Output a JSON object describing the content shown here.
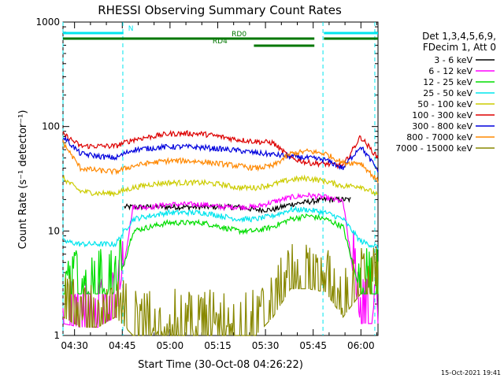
{
  "chart_data": {
    "type": "line",
    "title": "RHESSI Observing Summary Count Rates",
    "xlabel": "Start Time (30-Oct-08 04:26:22)",
    "ylabel": "Count Rate (s⁻¹ detector⁻¹)",
    "y_scale": "log",
    "xlim_minutes": [
      0,
      99
    ],
    "ylim": [
      1,
      1000
    ],
    "x_ticks": [
      {
        "t": 3.63,
        "label": "04:30"
      },
      {
        "t": 18.63,
        "label": "04:45"
      },
      {
        "t": 33.63,
        "label": "05:00"
      },
      {
        "t": 48.63,
        "label": "05:15"
      },
      {
        "t": 63.63,
        "label": "05:30"
      },
      {
        "t": 78.63,
        "label": "05:45"
      },
      {
        "t": 93.63,
        "label": "06:00"
      }
    ],
    "y_ticks": [
      {
        "v": 1,
        "label": "1"
      },
      {
        "v": 10,
        "label": "10"
      },
      {
        "v": 100,
        "label": "100"
      },
      {
        "v": 1000,
        "label": "1000"
      }
    ],
    "header": {
      "det": "Det 1,3,4,5,6,9,",
      "fdecim": "FDecim 1, Att 0"
    },
    "timestamp": "15-Oct-2021 19:41",
    "flags": [
      {
        "name": "N",
        "color": "#00e5ee",
        "segments": [
          [
            0,
            19
          ],
          [
            82,
            99
          ]
        ],
        "label": "N"
      },
      {
        "name": "RD0",
        "color": "#007700",
        "segments": [
          [
            0,
            79
          ],
          [
            82,
            99
          ]
        ],
        "label": "RD0"
      },
      {
        "name": "RD4",
        "color": "#007700",
        "segments": [
          [
            60,
            79
          ]
        ],
        "label": "RD4"
      }
    ],
    "boundaries_minutes": [
      0,
      18.8,
      81.7,
      98
    ],
    "series": [
      {
        "name": "3 - 6 keV",
        "color": "#000000",
        "values": [
          0,
          0,
          0,
          0,
          17,
          17,
          17,
          17,
          17,
          17,
          17,
          16,
          16,
          18,
          19,
          20,
          20,
          0,
          0
        ]
      },
      {
        "name": "6 - 12 keV",
        "color": "#ff00ff",
        "values": [
          1.3,
          1.2,
          1.2,
          1.5,
          17,
          17,
          18,
          18,
          18,
          17,
          17,
          17,
          19,
          21,
          22,
          21,
          19,
          1.3,
          1.3
        ]
      },
      {
        "name": "12 - 25 keV",
        "color": "#00dd00",
        "values": [
          2.5,
          2.5,
          2.5,
          2.5,
          10,
          11,
          12,
          12,
          12,
          11,
          10,
          10,
          11,
          13,
          14,
          13,
          11,
          2.5,
          2.5
        ]
      },
      {
        "name": "25 - 50 keV",
        "color": "#00e5ee",
        "values": [
          8,
          7.5,
          7.5,
          7.5,
          13,
          14,
          15,
          15,
          15,
          14,
          13,
          13,
          14,
          16,
          16,
          15,
          13,
          8,
          7
        ]
      },
      {
        "name": "50 - 100 keV",
        "color": "#cccc00",
        "values": [
          32,
          24,
          23,
          23,
          26,
          28,
          29,
          29,
          29,
          28,
          26,
          26,
          28,
          31,
          32,
          30,
          27,
          27,
          22
        ]
      },
      {
        "name": "100 - 300 keV",
        "color": "#dd0000",
        "values": [
          85,
          65,
          65,
          65,
          75,
          80,
          85,
          86,
          85,
          80,
          75,
          72,
          70,
          50,
          45,
          44,
          42,
          80,
          50
        ]
      },
      {
        "name": "300 - 800 keV",
        "color": "#0000dd",
        "values": [
          80,
          55,
          52,
          50,
          60,
          62,
          64,
          64,
          63,
          61,
          59,
          56,
          54,
          52,
          50,
          48,
          40,
          65,
          38
        ]
      },
      {
        "name": "800 - 7000 keV",
        "color": "#ff8800",
        "values": [
          70,
          40,
          38,
          37,
          42,
          45,
          47,
          47,
          46,
          44,
          42,
          40,
          42,
          55,
          58,
          55,
          45,
          45,
          30
        ]
      },
      {
        "name": "7000 - 15000 keV",
        "color": "#888800",
        "values": [
          1.5,
          1.2,
          1.2,
          1.5,
          1,
          1,
          1,
          1,
          1,
          1,
          1,
          1,
          1.5,
          2.8,
          2.8,
          2.6,
          1.5,
          2.5,
          2.5
        ]
      }
    ]
  }
}
